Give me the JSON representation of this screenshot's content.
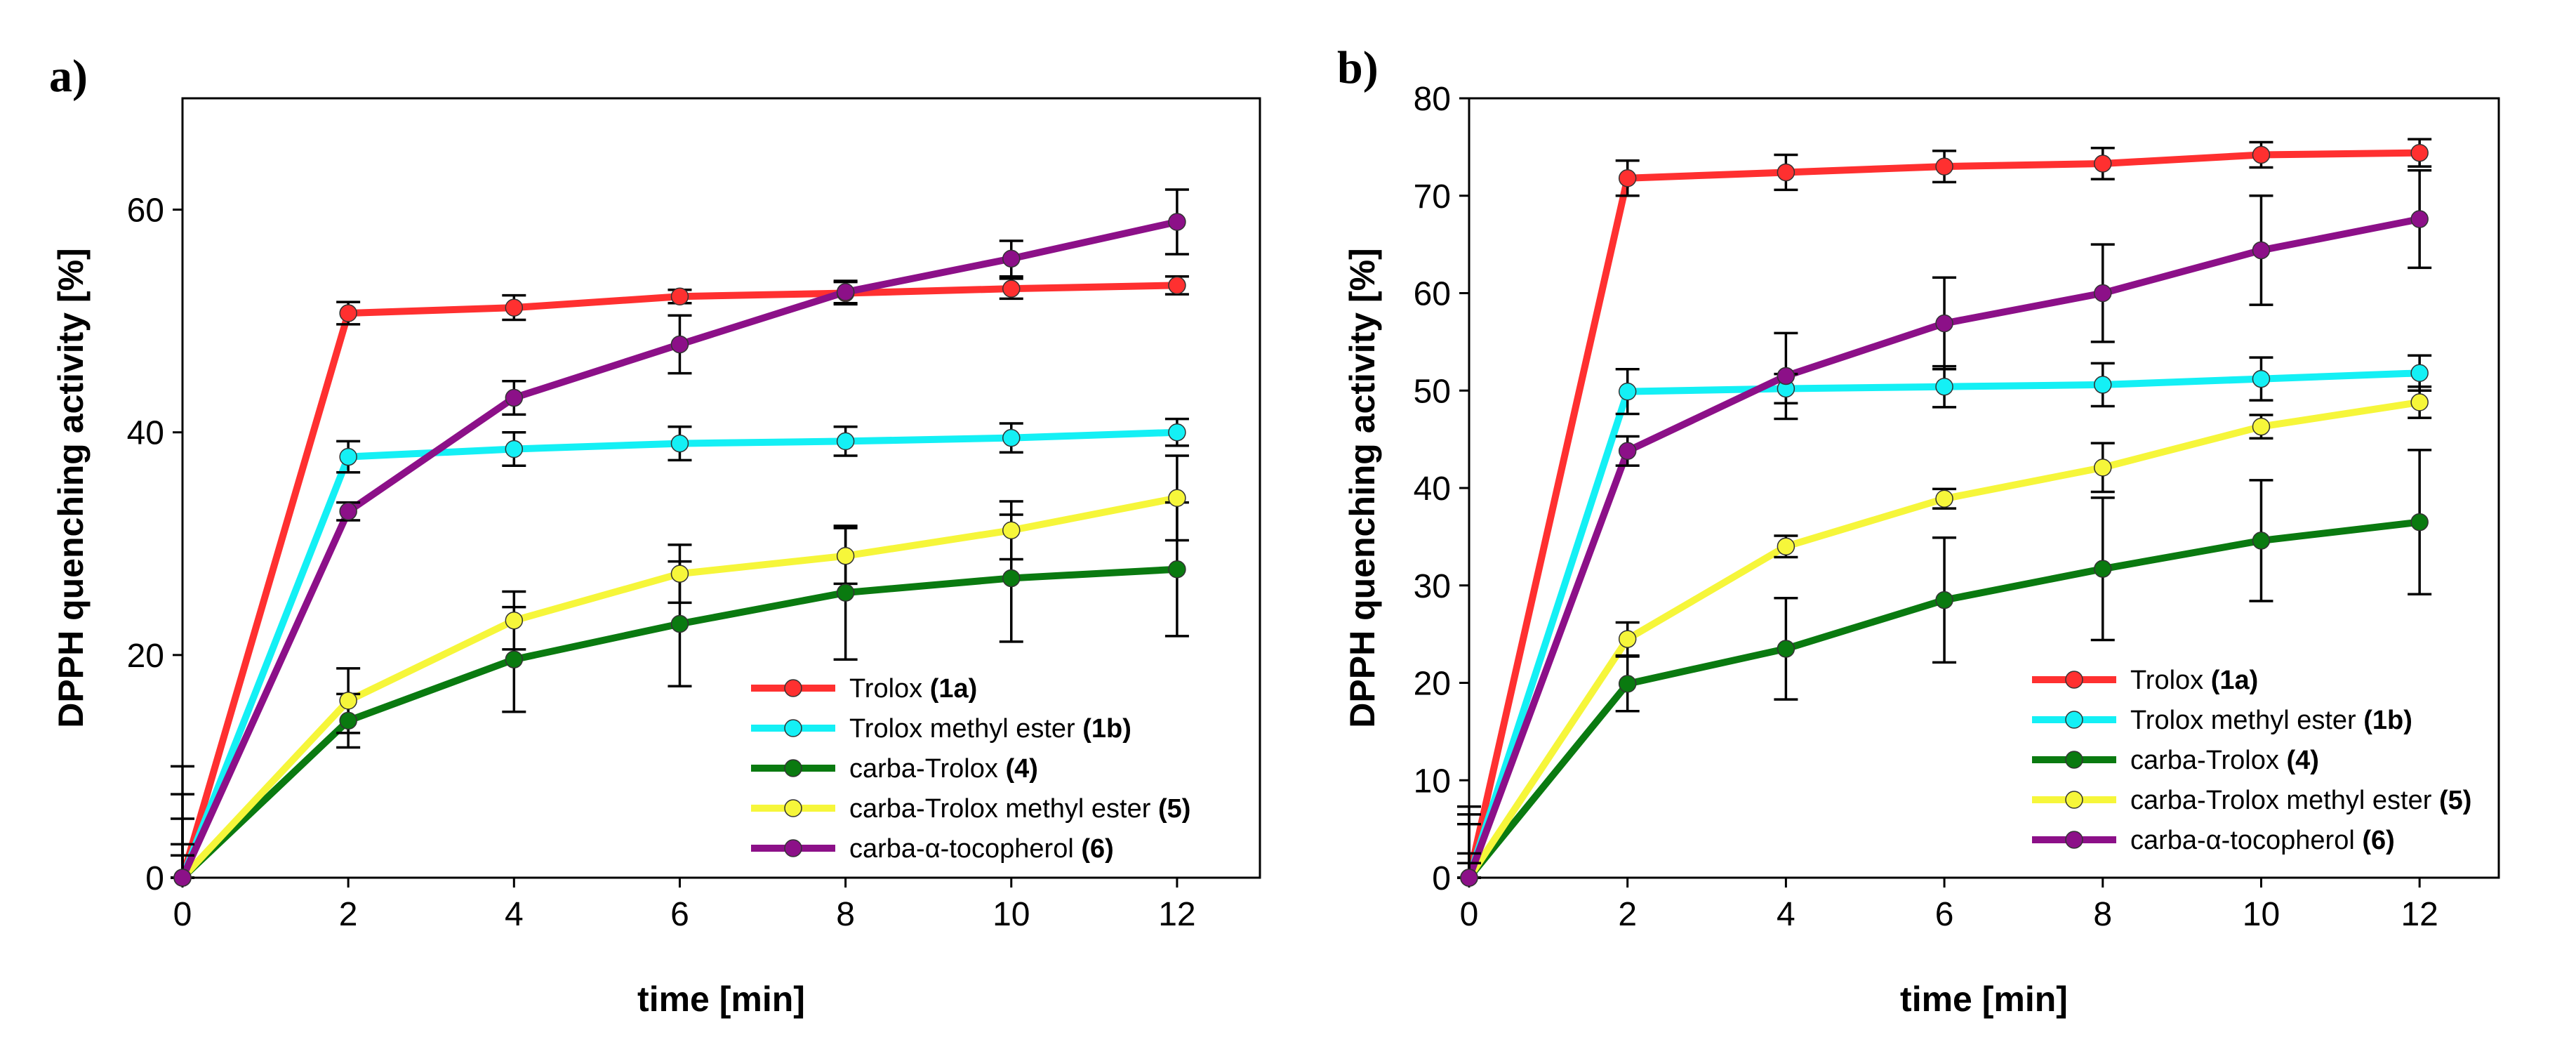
{
  "chart_data": [
    {
      "type": "line",
      "panel_label": "a)",
      "xlabel": "time [min]",
      "ylabel": "DPPH quenching activity [%]",
      "x": [
        0,
        2,
        4,
        6,
        8,
        10,
        12
      ],
      "xlim": [
        0,
        13
      ],
      "ylim": [
        0,
        70
      ],
      "xticks": [
        0,
        2,
        4,
        6,
        8,
        10,
        12
      ],
      "yticks": [
        0,
        20,
        40,
        60
      ],
      "legend_position": "bottom-right",
      "series": [
        {
          "name": "Trolox",
          "label": "(1a)",
          "color": "#ff3030",
          "values": [
            0,
            50.7,
            51.2,
            52.2,
            52.5,
            52.9,
            53.2
          ],
          "errors": [
            2.0,
            1.0,
            1.1,
            0.6,
            1.0,
            0.9,
            0.8
          ]
        },
        {
          "name": "Trolox methyl ester",
          "label": "(1b)",
          "color": "#14f0f5",
          "values": [
            0,
            37.8,
            38.5,
            39.0,
            39.2,
            39.5,
            40.0
          ],
          "errors": [
            3.0,
            1.4,
            1.5,
            1.5,
            1.3,
            1.3,
            1.2
          ]
        },
        {
          "name": "carba-Trolox",
          "label": "(4)",
          "color": "#0a7a10",
          "values": [
            0,
            14.1,
            19.6,
            22.8,
            25.6,
            26.9,
            27.7
          ],
          "errors": [
            5.3,
            2.4,
            4.7,
            5.6,
            6.0,
            5.7,
            6.0
          ]
        },
        {
          "name": "carba-Trolox methyl ester",
          "label": "(5)",
          "color": "#f6f63a",
          "values": [
            0,
            15.9,
            23.1,
            27.3,
            28.9,
            31.2,
            34.1
          ],
          "errors": [
            7.5,
            2.9,
            2.6,
            2.6,
            2.5,
            2.6,
            3.8
          ]
        },
        {
          "name": "carba-α-tocopherol",
          "label": "(6)",
          "color": "#8c1088",
          "values": [
            0,
            32.9,
            43.1,
            47.9,
            52.6,
            55.6,
            58.9
          ],
          "errors": [
            10.0,
            0.8,
            1.5,
            2.6,
            1.0,
            1.6,
            2.9
          ]
        }
      ]
    },
    {
      "type": "line",
      "panel_label": "b)",
      "xlabel": "time [min]",
      "ylabel": "DPPH quenching activity [%]",
      "x": [
        0,
        2,
        4,
        6,
        8,
        10,
        12
      ],
      "xlim": [
        0,
        13
      ],
      "ylim": [
        0,
        80
      ],
      "xticks": [
        0,
        2,
        4,
        6,
        8,
        10,
        12
      ],
      "yticks": [
        0,
        10,
        20,
        30,
        40,
        50,
        60,
        70,
        80
      ],
      "legend_position": "bottom-right",
      "series": [
        {
          "name": "Trolox",
          "label": "(1a)",
          "color": "#ff3030",
          "values": [
            0,
            71.8,
            72.4,
            73.0,
            73.3,
            74.2,
            74.4
          ],
          "errors": [
            1.5,
            1.8,
            1.8,
            1.6,
            1.6,
            1.3,
            1.4
          ]
        },
        {
          "name": "Trolox methyl ester",
          "label": "(1b)",
          "color": "#14f0f5",
          "values": [
            0,
            49.9,
            50.2,
            50.4,
            50.6,
            51.2,
            51.8
          ],
          "errors": [
            2.5,
            2.3,
            1.5,
            2.1,
            2.2,
            2.2,
            1.8
          ]
        },
        {
          "name": "carba-Trolox",
          "label": "(4)",
          "color": "#0a7a10",
          "values": [
            0,
            19.9,
            23.5,
            28.5,
            31.7,
            34.6,
            36.5
          ],
          "errors": [
            5.5,
            2.8,
            5.2,
            6.4,
            7.3,
            6.2,
            7.4
          ]
        },
        {
          "name": "carba-Trolox methyl ester",
          "label": "(5)",
          "color": "#f6f63a",
          "values": [
            0,
            24.5,
            34.0,
            38.9,
            42.1,
            46.3,
            48.8
          ],
          "errors": [
            6.5,
            1.7,
            1.1,
            1.0,
            2.5,
            1.2,
            1.6
          ]
        },
        {
          "name": "carba-α-tocopherol",
          "label": "(6)",
          "color": "#8c1088",
          "values": [
            0,
            43.8,
            51.5,
            56.9,
            60.0,
            64.4,
            67.6
          ],
          "errors": [
            7.3,
            1.5,
            4.4,
            4.7,
            5.0,
            5.6,
            5.0
          ]
        }
      ]
    }
  ]
}
